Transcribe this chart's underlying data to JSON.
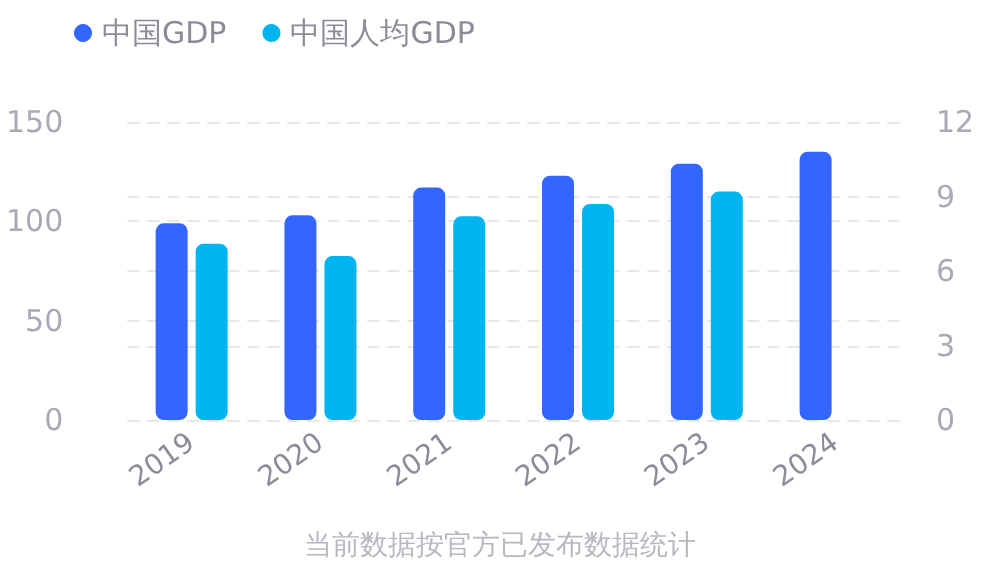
{
  "chart_data": {
    "type": "bar",
    "categories": [
      "2019",
      "2020",
      "2021",
      "2022",
      "2023",
      "2024"
    ],
    "series": [
      {
        "name": "中国GDP",
        "color": "#3366ff",
        "values": [
          99,
          103,
          117,
          123,
          129,
          135
        ]
      },
      {
        "name": "中国人均GDP",
        "color": "#00b4f0",
        "axis": "y2",
        "values": [
          7.1,
          6.6,
          8.2,
          8.7,
          9.2,
          null
        ]
      }
    ],
    "ylim": [
      0,
      150
    ],
    "yticks": [
      0,
      50,
      100,
      150
    ],
    "y2lim": [
      0,
      12
    ],
    "y2ticks": [
      0,
      3,
      6,
      9,
      12
    ],
    "grid": true,
    "legend": "top left",
    "annotations": [
      "当前数据按官方已发布数据统计"
    ]
  }
}
